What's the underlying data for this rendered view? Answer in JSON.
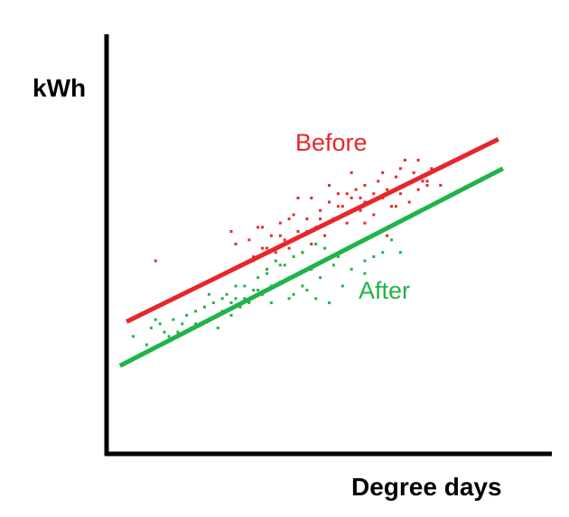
{
  "chart_data": {
    "type": "scatter",
    "title": "",
    "xlabel": "Degree days",
    "ylabel": "kWh",
    "xlim": [
      0,
      100
    ],
    "ylim": [
      0,
      100
    ],
    "grid": false,
    "legend": "none",
    "series": [
      {
        "name": "Before",
        "color": "#e8262a",
        "trend": {
          "x": [
            4.5,
            88
          ],
          "y": [
            31.5,
            75
          ]
        },
        "points": [
          [
            11,
            46
          ],
          [
            28,
            53
          ],
          [
            29,
            50
          ],
          [
            30,
            45
          ],
          [
            32,
            51
          ],
          [
            33,
            47
          ],
          [
            34,
            54
          ],
          [
            35,
            49
          ],
          [
            36,
            44
          ],
          [
            37,
            52
          ],
          [
            38,
            48
          ],
          [
            39,
            55
          ],
          [
            40,
            51
          ],
          [
            41,
            49
          ],
          [
            42,
            57
          ],
          [
            43,
            53
          ],
          [
            44,
            48
          ],
          [
            45,
            56
          ],
          [
            46,
            61
          ],
          [
            47,
            54
          ],
          [
            48,
            58
          ],
          [
            49,
            52
          ],
          [
            50,
            60
          ],
          [
            51,
            56
          ],
          [
            52,
            62
          ],
          [
            53,
            59
          ],
          [
            54,
            55
          ],
          [
            55,
            61
          ],
          [
            56,
            63
          ],
          [
            57,
            58
          ],
          [
            58,
            64
          ],
          [
            59,
            60
          ],
          [
            60,
            57
          ],
          [
            61,
            65
          ],
          [
            62,
            61
          ],
          [
            63,
            63
          ],
          [
            64,
            59
          ],
          [
            65,
            66
          ],
          [
            66,
            62
          ],
          [
            67,
            64
          ],
          [
            68,
            60
          ],
          [
            69,
            67
          ],
          [
            70,
            63
          ],
          [
            71,
            65
          ],
          [
            73,
            68
          ],
          [
            75,
            64
          ],
          [
            63,
            52
          ],
          [
            58,
            55
          ],
          [
            50,
            64
          ],
          [
            46,
            50
          ],
          [
            43,
            61
          ],
          [
            55,
            67
          ],
          [
            62,
            67
          ],
          [
            67,
            70
          ],
          [
            72,
            65
          ],
          [
            58,
            60
          ],
          [
            54,
            62
          ],
          [
            48,
            56
          ],
          [
            41,
            56
          ],
          [
            39,
            52
          ],
          [
            36,
            49
          ],
          [
            45,
            53
          ],
          [
            60,
            62
          ],
          [
            65,
            59
          ],
          [
            70,
            70
          ],
          [
            72,
            64
          ],
          [
            35,
            54
          ],
          [
            52,
            59
          ],
          [
            57,
            61
          ],
          [
            66,
            68
          ]
        ]
      },
      {
        "name": "After",
        "color": "#20b34a",
        "trend": {
          "x": [
            3,
            89
          ],
          "y": [
            21,
            68
          ]
        },
        "points": [
          [
            6,
            28
          ],
          [
            9,
            26
          ],
          [
            10,
            30
          ],
          [
            12,
            31
          ],
          [
            14,
            28
          ],
          [
            15,
            32
          ],
          [
            16,
            29
          ],
          [
            18,
            33
          ],
          [
            19,
            30
          ],
          [
            20,
            34
          ],
          [
            21,
            31
          ],
          [
            22,
            35
          ],
          [
            23,
            32
          ],
          [
            24,
            36
          ],
          [
            25,
            30
          ],
          [
            26,
            34
          ],
          [
            27,
            38
          ],
          [
            28,
            33
          ],
          [
            29,
            37
          ],
          [
            30,
            35
          ],
          [
            31,
            40
          ],
          [
            32,
            36
          ],
          [
            33,
            39
          ],
          [
            34,
            42
          ],
          [
            35,
            38
          ],
          [
            36,
            44
          ],
          [
            37,
            40
          ],
          [
            38,
            46
          ],
          [
            39,
            41
          ],
          [
            40,
            45
          ],
          [
            41,
            37
          ],
          [
            42,
            47
          ],
          [
            43,
            43
          ],
          [
            44,
            48
          ],
          [
            45,
            39
          ],
          [
            46,
            44
          ],
          [
            47,
            50
          ],
          [
            48,
            42
          ],
          [
            49,
            46
          ],
          [
            50,
            36
          ],
          [
            51,
            45
          ],
          [
            53,
            40
          ],
          [
            55,
            44
          ],
          [
            58,
            46
          ],
          [
            60,
            47
          ],
          [
            62,
            48
          ],
          [
            64,
            51
          ],
          [
            58,
            43
          ],
          [
            49,
            49
          ],
          [
            44,
            40
          ],
          [
            39,
            45
          ],
          [
            33,
            46
          ],
          [
            29,
            40
          ],
          [
            26,
            37
          ],
          [
            23,
            38
          ],
          [
            47,
            37
          ],
          [
            52,
            47
          ],
          [
            42,
            38
          ],
          [
            37,
            36
          ],
          [
            34,
            39
          ],
          [
            31,
            37
          ],
          [
            28,
            36
          ],
          [
            25,
            33
          ],
          [
            20,
            31
          ],
          [
            17,
            31
          ],
          [
            13,
            29
          ],
          [
            66,
            48
          ],
          [
            11,
            32
          ],
          [
            36,
            43
          ],
          [
            41,
            42
          ]
        ]
      }
    ]
  }
}
